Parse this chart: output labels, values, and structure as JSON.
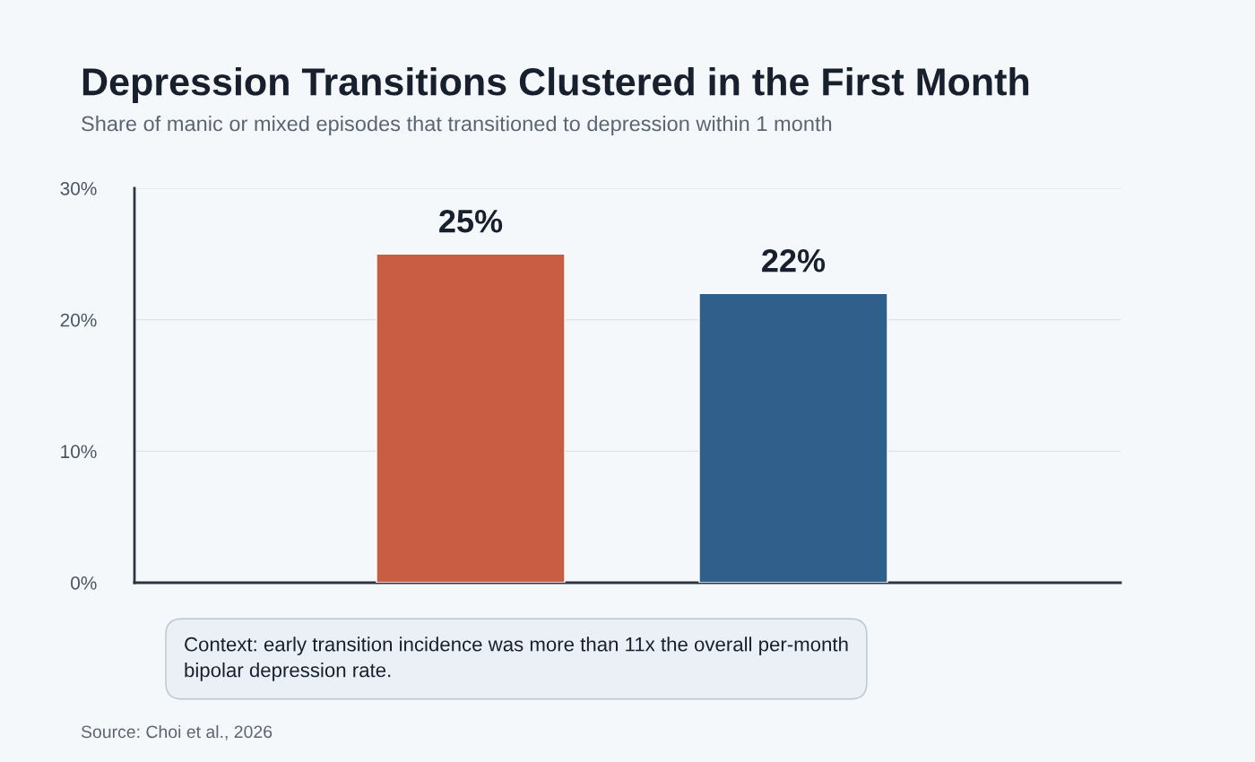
{
  "chart_data": {
    "type": "bar",
    "title": "Depression Transitions Clustered in the First Month",
    "subtitle": "Share of manic or mixed episodes that transitioned to depression within 1 month",
    "categories": [
      null,
      null
    ],
    "values": [
      25,
      22
    ],
    "colors": [
      "#c95d43",
      "#2f5f8a"
    ],
    "value_labels": [
      "25%",
      "22%"
    ],
    "ylim": [
      0,
      30
    ],
    "yticks": [
      {
        "value": 0,
        "label": "0%"
      },
      {
        "value": 10,
        "label": "10%"
      },
      {
        "value": 20,
        "label": "20%"
      },
      {
        "value": 30,
        "label": "30%"
      }
    ],
    "grid": "y",
    "annotations": [
      "Context: early transition incidence was more than 11x the overall per-month\nbipolar depression rate.",
      "Source: Choi et al., 2026"
    ]
  }
}
